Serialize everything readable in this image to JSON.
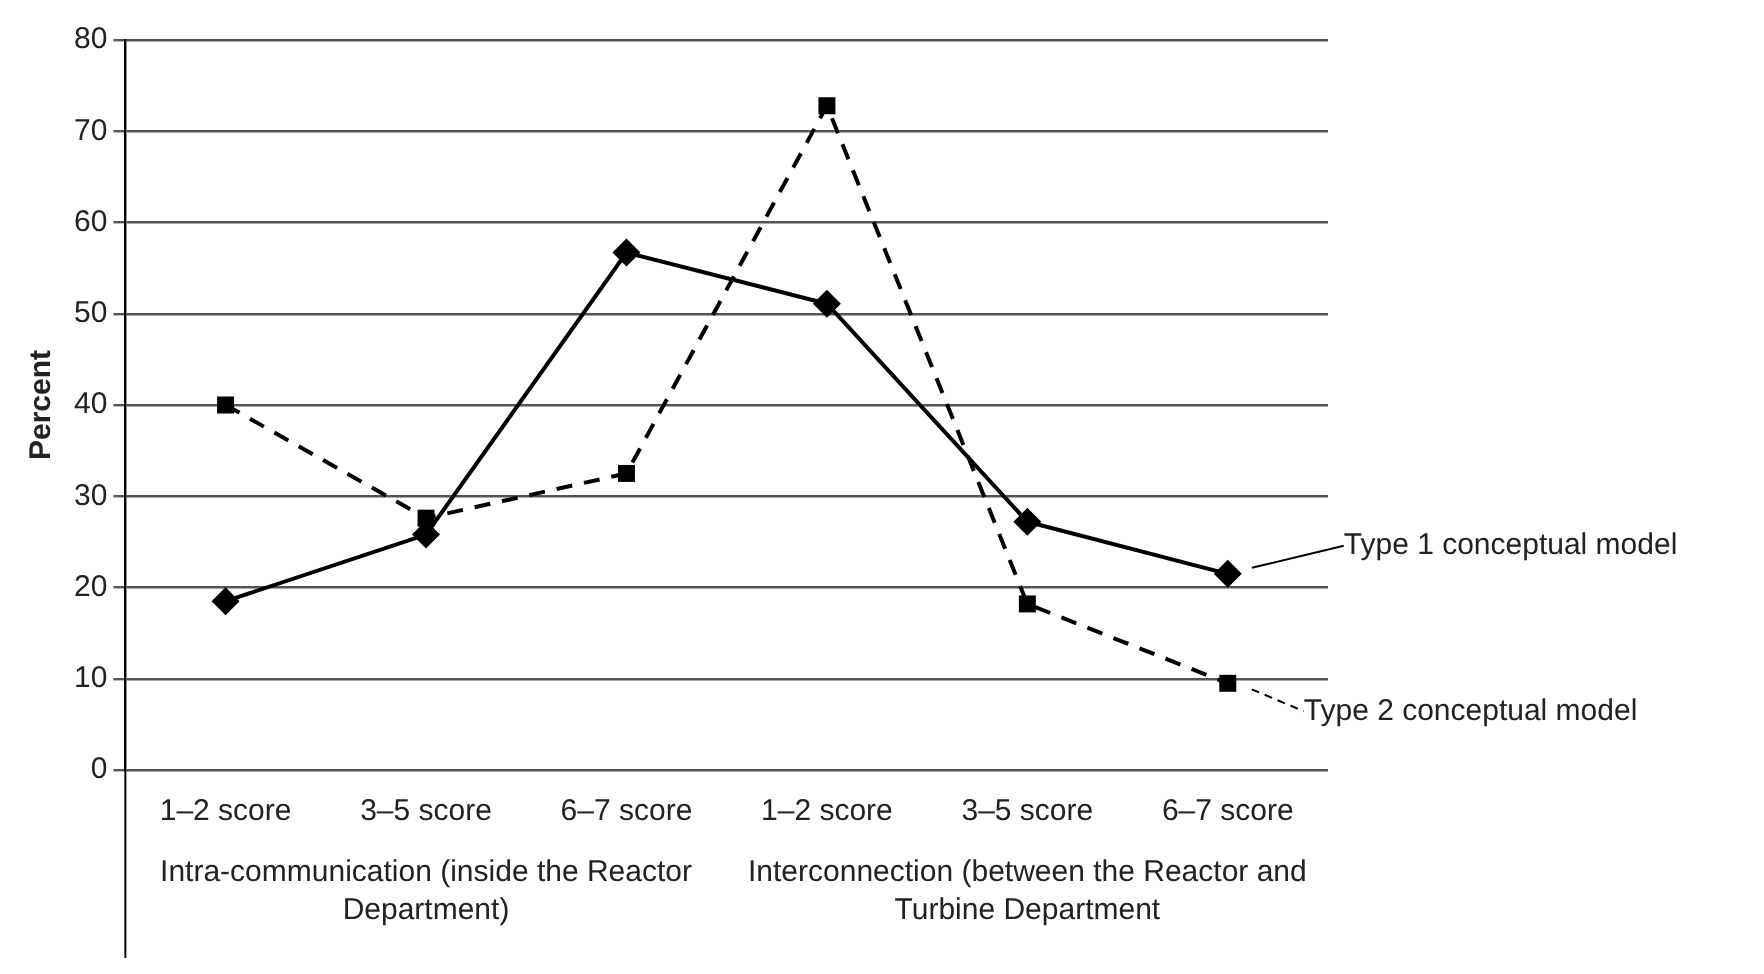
{
  "chart_data": {
    "type": "line",
    "ylabel": "Percent",
    "categories": [
      "1–2 score",
      "3–5 score",
      "6–7 score",
      "1–2 score",
      "3–5 score",
      "6–7 score"
    ],
    "series": [
      {
        "name": "Type 1 conceptual model",
        "color": "#000000",
        "marker": "diamond",
        "line_style": "solid",
        "values": [
          18.5,
          25.8,
          56.7,
          51.1,
          27.2,
          21.5
        ]
      },
      {
        "name": "Type 2 conceptual model",
        "color": "#000000",
        "marker": "square",
        "line_style": "dashed",
        "values": [
          40.0,
          27.6,
          32.5,
          72.8,
          18.2,
          9.5
        ]
      }
    ],
    "annotations": [
      "Intra-communication (inside the Reactor Department)",
      "Interconnection (between the Reactor and Turbine Department"
    ],
    "ylim": [
      0,
      80
    ],
    "yticks": [
      0,
      10,
      20,
      30,
      40,
      50,
      60,
      70,
      80
    ],
    "grid": "y",
    "legend": "right"
  }
}
